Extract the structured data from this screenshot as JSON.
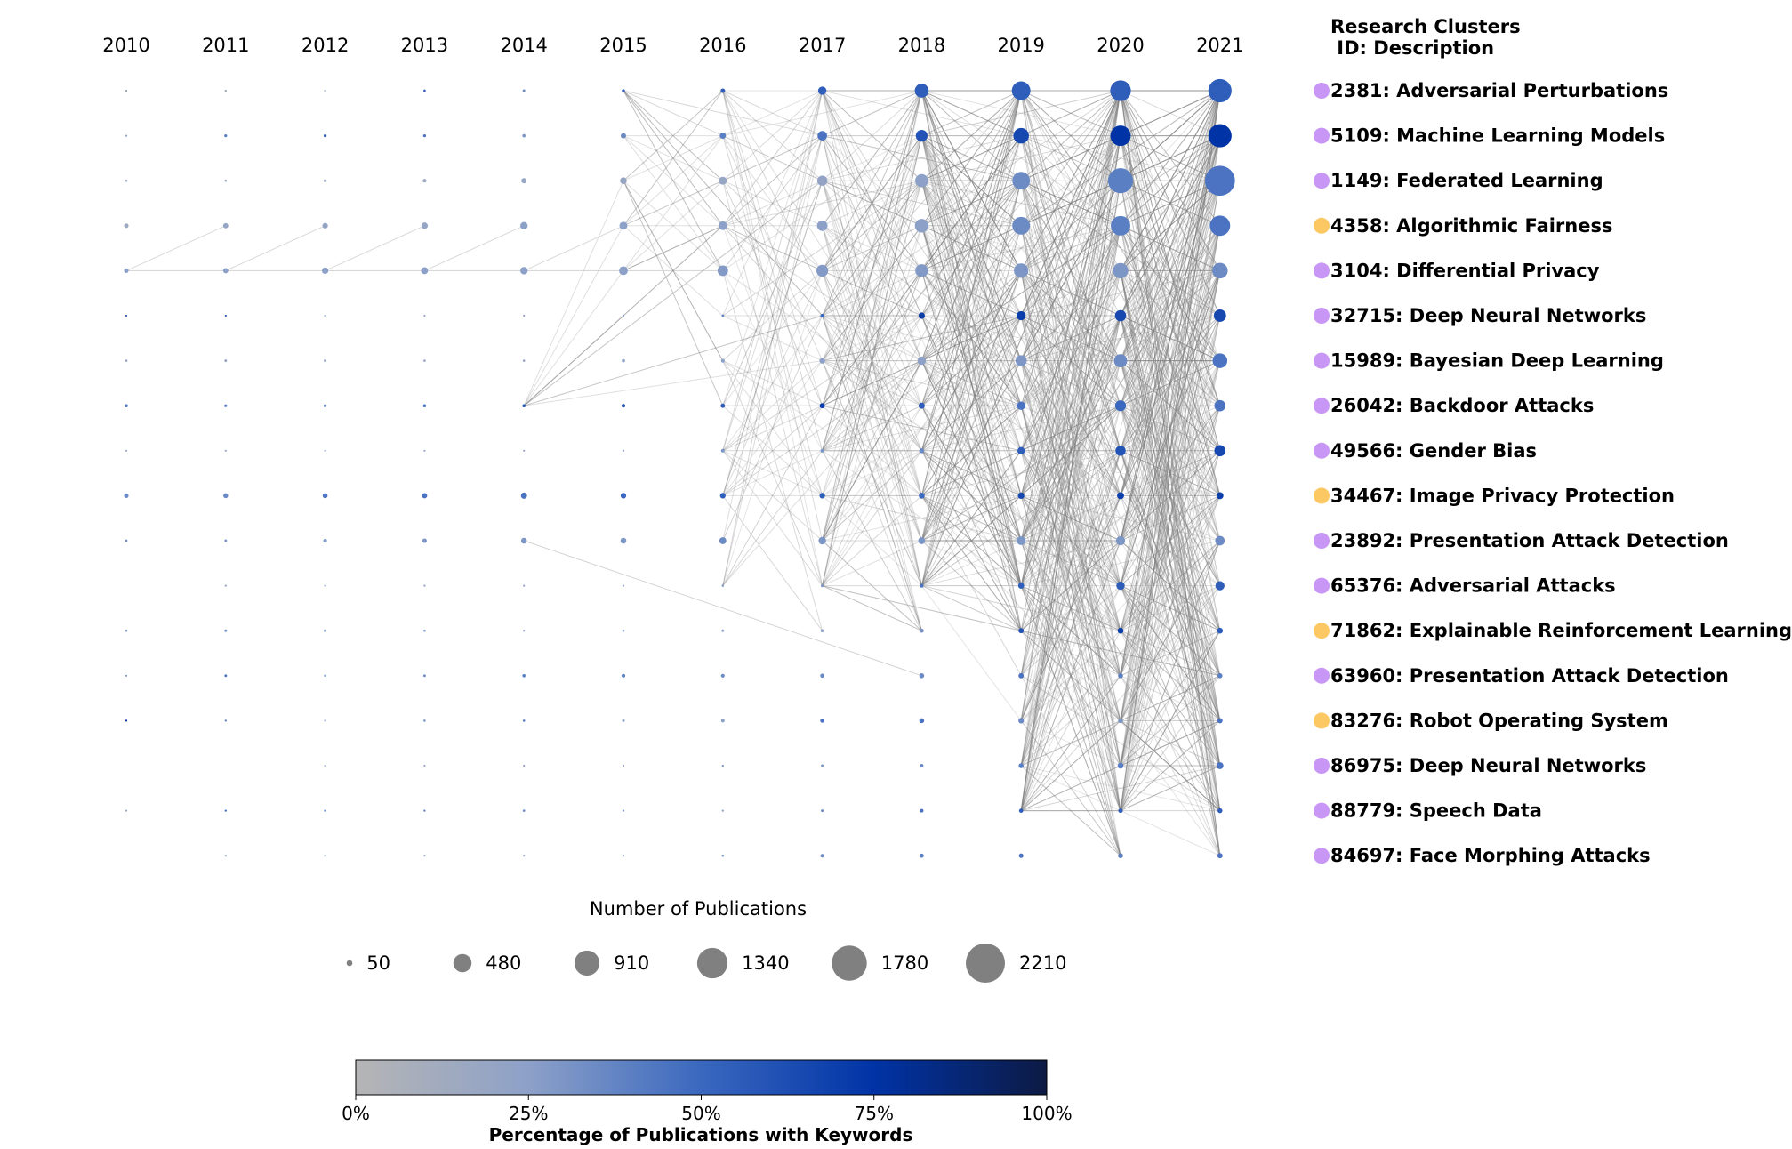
{
  "chart_data": {
    "type": "bubble-timeline-network",
    "years": [
      "2010",
      "2011",
      "2012",
      "2013",
      "2014",
      "2015",
      "2016",
      "2017",
      "2018",
      "2019",
      "2020",
      "2021"
    ],
    "legend": {
      "title_line1": "Research Clusters",
      "title_line2": " ID: Description"
    },
    "clusters": [
      {
        "label": "2381: Adversarial Perturbations",
        "marker_color": "#c896f5",
        "sizes": [
          5,
          5,
          5,
          8,
          10,
          15,
          30,
          100,
          280,
          500,
          620,
          780
        ],
        "pcts": [
          20,
          20,
          20,
          55,
          35,
          50,
          55,
          55,
          55,
          55,
          55,
          55
        ]
      },
      {
        "label": "5109: Machine Learning Models",
        "marker_color": "#c896f5",
        "sizes": [
          5,
          12,
          12,
          12,
          15,
          40,
          55,
          130,
          200,
          350,
          600,
          780
        ],
        "pcts": [
          25,
          40,
          55,
          45,
          30,
          35,
          40,
          45,
          60,
          65,
          75,
          75
        ]
      },
      {
        "label": "1149: Federated Learning",
        "marker_color": "#c896f5",
        "sizes": [
          8,
          8,
          12,
          20,
          40,
          65,
          90,
          150,
          250,
          450,
          900,
          1300
        ],
        "pcts": [
          15,
          15,
          15,
          15,
          20,
          20,
          20,
          22,
          25,
          35,
          40,
          45
        ]
      },
      {
        "label": "4358: Algorithmic Fairness",
        "marker_color": "#fcc864",
        "sizes": [
          30,
          40,
          45,
          60,
          80,
          90,
          110,
          160,
          270,
          450,
          550,
          600
        ],
        "pcts": [
          15,
          20,
          20,
          20,
          25,
          25,
          25,
          25,
          25,
          35,
          40,
          45
        ]
      },
      {
        "label": "3104: Differential Privacy",
        "marker_color": "#c896f5",
        "sizes": [
          30,
          40,
          60,
          70,
          80,
          110,
          160,
          200,
          240,
          300,
          340,
          350
        ],
        "pcts": [
          25,
          25,
          25,
          25,
          25,
          25,
          28,
          28,
          28,
          30,
          30,
          35
        ]
      },
      {
        "label": "32715: Deep Neural Networks",
        "marker_color": "#c896f5",
        "sizes": [
          3,
          3,
          3,
          2,
          2,
          4,
          8,
          20,
          60,
          120,
          180,
          220
        ],
        "pcts": [
          55,
          55,
          25,
          20,
          20,
          30,
          40,
          50,
          70,
          70,
          65,
          65
        ]
      },
      {
        "label": "15989: Bayesian Deep Learning",
        "marker_color": "#c896f5",
        "sizes": [
          8,
          10,
          10,
          8,
          8,
          15,
          20,
          45,
          100,
          180,
          250,
          310
        ],
        "pcts": [
          20,
          20,
          20,
          20,
          20,
          25,
          25,
          25,
          25,
          30,
          35,
          45
        ]
      },
      {
        "label": "26042: Backdoor Attacks",
        "marker_color": "#c896f5",
        "sizes": [
          15,
          12,
          12,
          14,
          14,
          20,
          28,
          40,
          55,
          100,
          170,
          180
        ],
        "pcts": [
          40,
          40,
          40,
          45,
          60,
          60,
          55,
          70,
          55,
          45,
          50,
          45
        ]
      },
      {
        "label": "49566: Gender Bias",
        "marker_color": "#c896f5",
        "sizes": [
          2,
          2,
          2,
          2,
          4,
          6,
          18,
          20,
          35,
          80,
          150,
          180
        ],
        "pcts": [
          20,
          20,
          20,
          20,
          20,
          20,
          30,
          30,
          35,
          55,
          60,
          65
        ]
      },
      {
        "label": "34467: Image Privacy Protection",
        "marker_color": "#fcc864",
        "sizes": [
          30,
          35,
          35,
          40,
          55,
          45,
          45,
          45,
          50,
          60,
          70,
          70
        ],
        "pcts": [
          35,
          35,
          45,
          45,
          45,
          50,
          55,
          55,
          50,
          65,
          70,
          70
        ]
      },
      {
        "label": "23892: Presentation Attack Detection",
        "marker_color": "#c896f5",
        "sizes": [
          8,
          10,
          20,
          30,
          50,
          50,
          70,
          80,
          70,
          110,
          120,
          130
        ],
        "pcts": [
          35,
          30,
          30,
          30,
          30,
          30,
          35,
          30,
          30,
          30,
          30,
          35
        ]
      },
      {
        "label": "65376: Adversarial Attacks",
        "marker_color": "#c896f5",
        "sizes": [
          0,
          2,
          2,
          2,
          3,
          5,
          8,
          12,
          20,
          50,
          100,
          120
        ],
        "pcts": [
          0,
          20,
          20,
          20,
          20,
          20,
          25,
          30,
          45,
          55,
          55,
          55
        ]
      },
      {
        "label": "71862: Explainable Reinforcement Learning",
        "marker_color": "#fcc864",
        "sizes": [
          8,
          10,
          10,
          8,
          6,
          8,
          10,
          14,
          25,
          40,
          50,
          50
        ],
        "pcts": [
          30,
          35,
          30,
          30,
          20,
          25,
          25,
          25,
          30,
          60,
          70,
          55
        ]
      },
      {
        "label": "63960: Presentation Attack Detection",
        "marker_color": "#c896f5",
        "sizes": [
          5,
          10,
          8,
          10,
          15,
          20,
          20,
          25,
          35,
          40,
          35,
          35
        ],
        "pcts": [
          30,
          45,
          30,
          35,
          40,
          40,
          35,
          35,
          35,
          45,
          40,
          40
        ]
      },
      {
        "label": "83276: Robot Operating System",
        "marker_color": "#fcc864",
        "sizes": [
          3,
          6,
          6,
          8,
          8,
          10,
          18,
          25,
          35,
          45,
          35,
          40
        ],
        "pcts": [
          75,
          40,
          25,
          30,
          40,
          25,
          25,
          45,
          45,
          35,
          30,
          45
        ]
      },
      {
        "label": "86975: Deep Neural Networks",
        "marker_color": "#c896f5",
        "sizes": [
          0,
          0,
          1,
          1,
          2,
          3,
          6,
          10,
          18,
          35,
          50,
          70
        ],
        "pcts": [
          0,
          0,
          20,
          20,
          20,
          20,
          30,
          30,
          35,
          40,
          40,
          45
        ]
      },
      {
        "label": "88779: Speech Data",
        "marker_color": "#c896f5",
        "sizes": [
          2,
          6,
          6,
          6,
          8,
          6,
          6,
          10,
          18,
          25,
          30,
          35
        ],
        "pcts": [
          20,
          50,
          50,
          40,
          35,
          30,
          25,
          35,
          45,
          55,
          55,
          55
        ]
      },
      {
        "label": "84697: Face Morphing Attacks",
        "marker_color": "#c896f5",
        "sizes": [
          0,
          3,
          3,
          3,
          3,
          3,
          8,
          18,
          25,
          30,
          35,
          40
        ],
        "pcts": [
          0,
          20,
          20,
          20,
          20,
          20,
          30,
          35,
          40,
          45,
          40,
          45
        ]
      }
    ],
    "size_legend": {
      "title": "Number of Publications",
      "values": [
        50,
        480,
        910,
        1340,
        1780,
        2210
      ],
      "labels": [
        "50",
        "480",
        "910",
        "1340",
        "1780",
        "2210"
      ],
      "marker_color": "#808080"
    },
    "colorbar": {
      "title": "Percentage of Publications with Keywords",
      "ticks": [
        "0%",
        "25%",
        "50%",
        "75%",
        "100%"
      ],
      "stops": [
        {
          "pct": 0,
          "color": "#b5b5b5"
        },
        {
          "pct": 25,
          "color": "#8da1c8"
        },
        {
          "pct": 50,
          "color": "#3a68bf"
        },
        {
          "pct": 75,
          "color": "#0033a6"
        },
        {
          "pct": 100,
          "color": "#0d1a44"
        }
      ]
    },
    "link_color": "#808080"
  }
}
